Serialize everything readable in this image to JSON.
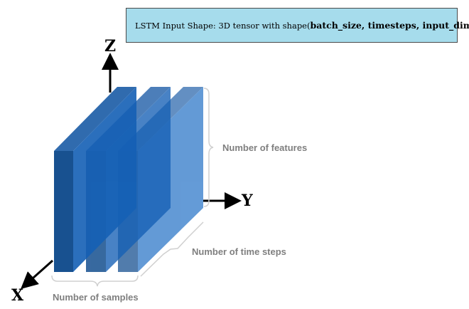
{
  "title": {
    "prefix": "LSTM Input Shape: 3D tensor with shape(",
    "params": "batch_size, timesteps, input_dim",
    "suffix": ")"
  },
  "axes": {
    "z": "Z",
    "y": "Y",
    "x": "X"
  },
  "annotations": {
    "features": "Number of features",
    "time_steps": "Number of time steps",
    "samples": "Number of samples"
  },
  "colors": {
    "slab_front": "#003f85",
    "slab_side": "#1560b5",
    "slab_top": "#1a5ba6",
    "title_bg": "#a6dcec",
    "brace": "#d0d0d0",
    "annotation_text": "#7f7f7f"
  }
}
